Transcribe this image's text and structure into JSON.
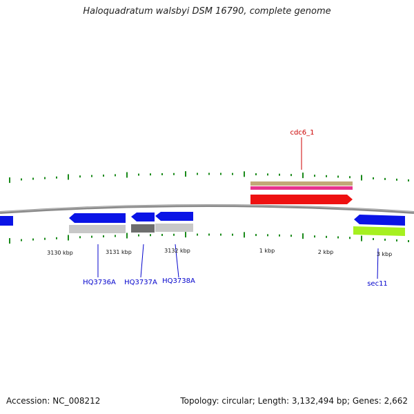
{
  "title": "Haloquadratum walsbyi DSM 16790, complete genome",
  "accession_text": "Accession: NC_008212",
  "summary_text": "Topology: circular; Length: 3,132,494 bp; Genes: 2,662",
  "scale_labels": [
    "3130 kbp",
    "3131 kbp",
    "3132 kbp",
    "1 kbp",
    "2 kbp",
    "3 kbp"
  ],
  "gene_labels": [
    {
      "name": "HQ3736A",
      "color": "#0000cc"
    },
    {
      "name": "HQ3737A",
      "color": "#0000cc"
    },
    {
      "name": "HQ3738A",
      "color": "#0000cc"
    },
    {
      "name": "sec11",
      "color": "#0000cc"
    },
    {
      "name": "cdc6_1",
      "color": "#cc0000"
    }
  ],
  "colors": {
    "backbone": "#8a8a8a",
    "cds": "#0a14e6",
    "gene_feature": "#c8c8c8",
    "gene_feature_dark": "#6e6e6e",
    "lime_feature": "#a6f020",
    "red_feature": "#ee1111",
    "pink_track": "#e8338e",
    "tan_track": "#c2a878",
    "tick": "#1a8a1a"
  }
}
